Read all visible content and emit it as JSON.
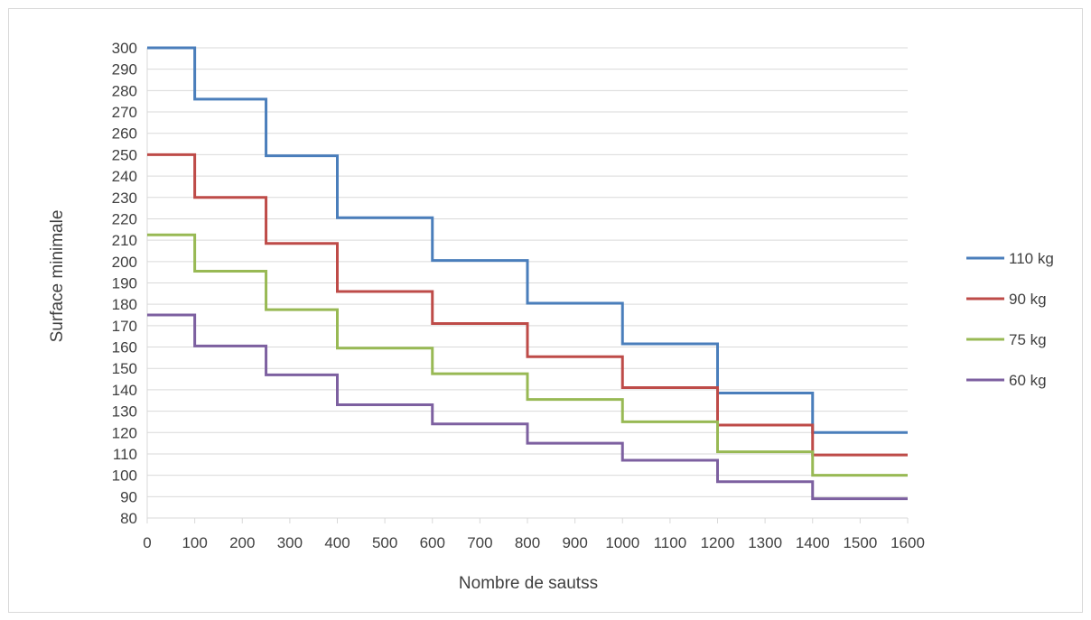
{
  "chart_data": {
    "type": "line",
    "step": true,
    "title": "",
    "xlabel": "Nombre de sautss",
    "ylabel": "Surface minimale",
    "xlim": [
      0,
      1600
    ],
    "ylim": [
      80,
      300
    ],
    "xticks": [
      0,
      100,
      200,
      300,
      400,
      500,
      600,
      700,
      800,
      900,
      1000,
      1100,
      1200,
      1300,
      1400,
      1500,
      1600
    ],
    "yticks": [
      80,
      90,
      100,
      110,
      120,
      130,
      140,
      150,
      160,
      170,
      180,
      190,
      200,
      210,
      220,
      230,
      240,
      250,
      260,
      270,
      280,
      290,
      300
    ],
    "grid": "horizontal",
    "legend_position": "right",
    "breakpoints": [
      0,
      100,
      250,
      400,
      600,
      800,
      1000,
      1200,
      1400,
      1600
    ],
    "series": [
      {
        "name": "110 kg",
        "color": "#4a7ebb",
        "values": [
          300,
          276,
          249.5,
          220.5,
          200.5,
          180.5,
          161.5,
          138.5,
          120
        ]
      },
      {
        "name": "90 kg",
        "color": "#be4b48",
        "values": [
          250,
          230,
          208.5,
          186,
          171,
          155.5,
          141,
          123.5,
          109.5
        ]
      },
      {
        "name": "75 kg",
        "color": "#98b954",
        "values": [
          212.5,
          195.5,
          177.5,
          159.5,
          147.5,
          135.5,
          125,
          111,
          100
        ]
      },
      {
        "name": "60 kg",
        "color": "#7d60a0",
        "values": [
          175,
          160.5,
          147,
          133,
          124,
          115,
          107,
          97,
          89
        ]
      }
    ]
  }
}
